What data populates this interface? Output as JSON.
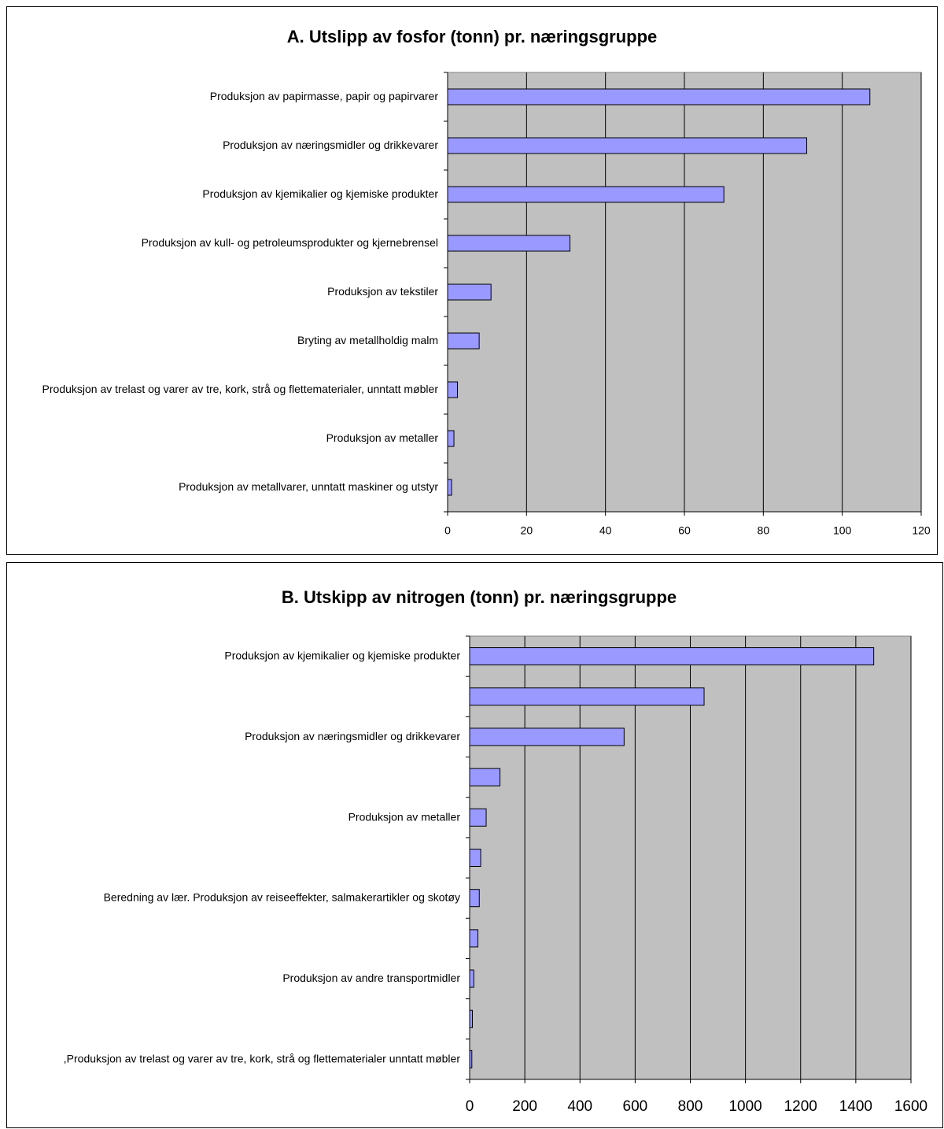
{
  "chart_data": [
    {
      "type": "bar",
      "orientation": "horizontal",
      "title": "A. Utslipp av fosfor (tonn) pr. næringsgruppe",
      "categories": [
        "Produksjon av papirmasse, papir og papirvarer",
        "Produksjon av næringsmidler og drikkevarer",
        "Produksjon av kjemikalier og kjemiske produkter",
        "Produksjon av kull- og petroleumsprodukter og kjernebrensel",
        "Produksjon av tekstiler",
        "Bryting av metallholdig malm",
        "Produksjon av trelast og varer av tre, kork, strå og flettematerialer, unntatt møbler",
        "Produksjon av metaller",
        "Produksjon av metallvarer, unntatt maskiner og utstyr"
      ],
      "values": [
        107,
        91,
        70,
        31,
        11,
        8,
        2.5,
        1.6,
        1
      ],
      "color": "#9999ff",
      "plot_background": "#c0c0c0",
      "xlim": [
        0,
        120
      ],
      "xticks": [
        0,
        20,
        40,
        60,
        80,
        100,
        120
      ],
      "grid": true
    },
    {
      "type": "bar",
      "orientation": "horizontal",
      "title": "B. Utskipp av nitrogen (tonn) pr. næringsgruppe",
      "categories": [
        "Produksjon av kjemikalier og kjemiske produkter",
        null,
        "Produksjon av næringsmidler og drikkevarer",
        null,
        "Produksjon av metaller",
        null,
        "Beredning av lær. Produksjon av reiseeffekter, salmakerartikler og skotøy",
        null,
        "Produksjon av andre transportmidler",
        null,
        ",Produksjon av trelast og varer av tre, kork, strå og flettematerialer unntatt møbler"
      ],
      "values": [
        1465,
        850,
        560,
        110,
        60,
        40,
        35,
        30,
        15,
        10,
        8
      ],
      "color": "#9999ff",
      "plot_background": "#c0c0c0",
      "xlim": [
        0,
        1600
      ],
      "xticks": [
        0,
        200,
        400,
        600,
        800,
        1000,
        1200,
        1400,
        1600
      ],
      "grid": true
    }
  ]
}
